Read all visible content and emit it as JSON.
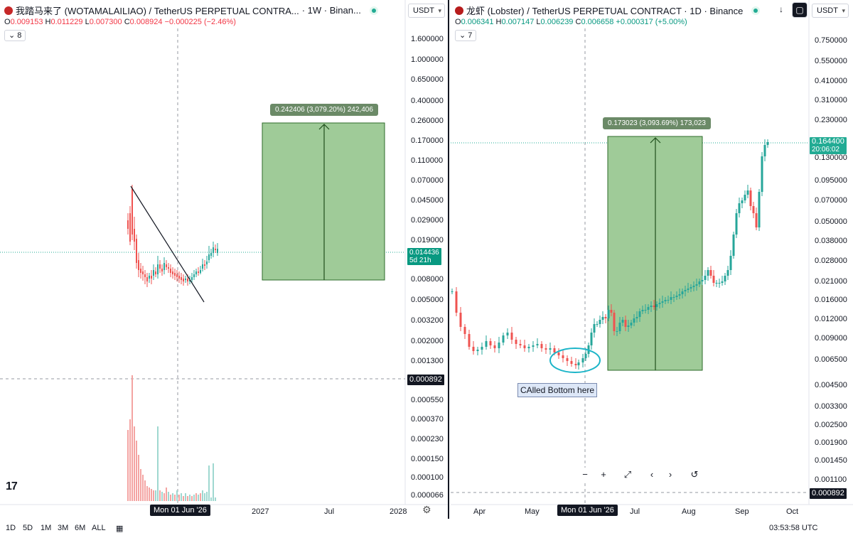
{
  "left": {
    "symbol": "我踏马来了 (WOTAMALAILIAO) / TetherUS PERPETUAL CONTRA...",
    "interval": "· 1W · Binan...",
    "ohlc": {
      "o_label": "O",
      "o": "0.009153",
      "h_label": "H",
      "h": "0.011229",
      "l_label": "L",
      "l": "0.007300",
      "c_label": "C",
      "c": "0.008924",
      "change": "−0.000225 (−2.46%)"
    },
    "indicators_count": "8",
    "currency": "USDT",
    "y_ticks": [
      "1.600000",
      "1.000000",
      "0.650000",
      "0.400000",
      "0.260000",
      "0.170000",
      "0.110000",
      "0.070000",
      "0.045000",
      "0.029000",
      "0.019000",
      "0.008000",
      "0.005000",
      "0.003200",
      "0.002000",
      "0.001300",
      "0.000550",
      "0.000370",
      "0.000230",
      "0.000150",
      "0.000100",
      "0.000066"
    ],
    "last_price": "0.014436",
    "countdown": "5d 21h",
    "crosshair_price": "0.000892",
    "crosshair_date": "Mon 01 Jun '26",
    "x_ticks": [
      "2027",
      "Jul",
      "2028"
    ],
    "measure": "0.242406 (3,079.20%) 242,406",
    "tv_logo": "17"
  },
  "right": {
    "symbol": "龙虾 (Lobster) / TetherUS PERPETUAL CONTRACT · 1D · Binance",
    "ohlc": {
      "o_label": "O",
      "o": "0.006341",
      "h_label": "H",
      "h": "0.007147",
      "l_label": "L",
      "l": "0.006239",
      "c_label": "C",
      "c": "0.006658",
      "change": "+0.000317 (+5.00%)"
    },
    "indicators_count": "7",
    "currency": "USDT",
    "y_ticks": [
      "0.750000",
      "0.550000",
      "0.410000",
      "0.310000",
      "0.230000",
      "0.130000",
      "0.095000",
      "0.070000",
      "0.050000",
      "0.038000",
      "0.028000",
      "0.021000",
      "0.016000",
      "0.012000",
      "0.009000",
      "0.006500",
      "0.004500",
      "0.003300",
      "0.002500",
      "0.001900",
      "0.001450",
      "0.001100"
    ],
    "last_price": "0.164400",
    "countdown": "20:06:02",
    "crosshair_price": "0.000892",
    "crosshair_date": "Mon 01 Jun '26",
    "x_ticks": [
      "Apr",
      "May",
      "Jul",
      "Aug",
      "Sep",
      "Oct"
    ],
    "measure": "0.173023 (3,093.69%) 173,023",
    "note": "CAlled Bottom here",
    "nav": {
      "zoom_out": "−",
      "zoom_in": "+",
      "fit": "⤢",
      "prev": "‹",
      "next": "›",
      "reset": "↺"
    },
    "toolbar": {
      "down": "↓",
      "fullscreen": "▢"
    }
  },
  "bottom": {
    "ranges": [
      "1D",
      "5D",
      "1M",
      "3M",
      "6M",
      "ALL"
    ],
    "clock": "03:53:58 UTC"
  },
  "colors": {
    "up": "#26a69a",
    "down": "#ef5350",
    "measure_fill": "#9fcb98",
    "accent": "#22ab94"
  }
}
